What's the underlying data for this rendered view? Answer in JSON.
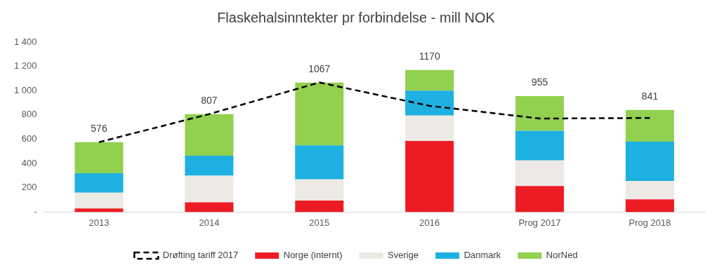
{
  "chart_data": {
    "type": "bar",
    "title": "Flaskehalsinntekter pr forbindelse - mill NOK",
    "stacked": true,
    "grid": false,
    "legend": "bottom",
    "categories": [
      "2013",
      "2014",
      "2015",
      "2016",
      "Prog 2017",
      "Prog 2018"
    ],
    "series": [
      {
        "name": "Norge (internt)",
        "color": "#ED1C24",
        "values": [
          30,
          80,
          95,
          585,
          215,
          105
        ]
      },
      {
        "name": "Sverige",
        "color": "#EDE9E4",
        "values": [
          130,
          220,
          175,
          210,
          210,
          150
        ]
      },
      {
        "name": "Danmark",
        "color": "#1DB0E0",
        "values": [
          160,
          165,
          280,
          205,
          245,
          325
        ]
      },
      {
        "name": "NorNed",
        "color": "#92D050",
        "values": [
          256,
          342,
          517,
          170,
          285,
          261
        ]
      },
      {
        "name": "Drøfting tariff 2017",
        "type": "line",
        "line_style": "dashed",
        "marker": "none",
        "color": "#000000",
        "values": [
          576,
          807,
          1067,
          875,
          770,
          775
        ]
      }
    ],
    "totals": [
      576,
      807,
      1067,
      1170,
      955,
      841
    ],
    "ylim": [
      0,
      1400
    ],
    "yticks": [
      {
        "value": 0,
        "label": "-"
      },
      200,
      400,
      600,
      800,
      {
        "value": 1000,
        "label": "1 000"
      },
      {
        "value": 1200,
        "label": "1 200"
      },
      {
        "value": 1400,
        "label": "1 400"
      }
    ]
  }
}
